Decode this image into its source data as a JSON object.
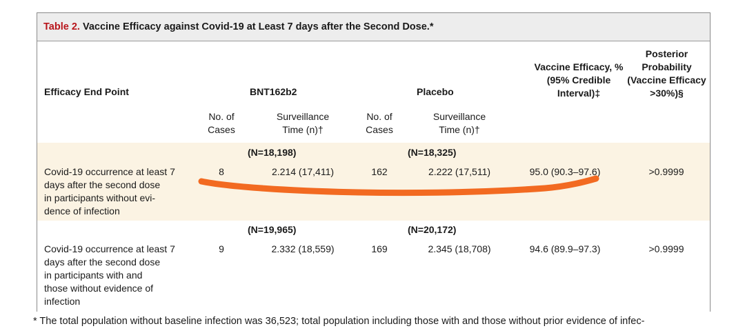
{
  "caption": {
    "label": "Table 2.",
    "title": "Vaccine Efficacy against Covid-19 at Least 7 days after the Second Dose.*"
  },
  "header": {
    "endpoint": "Efficacy End Point",
    "group1": "BNT162b2",
    "group2": "Placebo",
    "efficacy": [
      "Vaccine Efficacy, %",
      "(95% Credible",
      "Interval)‡"
    ],
    "posterior": [
      "Posterior",
      "Probability",
      "(Vaccine Efficacy",
      ">30%)§"
    ],
    "cases": [
      "No. of",
      "Cases"
    ],
    "surveillance": [
      "Surveillance",
      "Time (n)†"
    ]
  },
  "rows": [
    {
      "n1": "(N=18,198)",
      "n2": "(N=18,325)",
      "endpoint": [
        "Covid-19 occurrence at least 7",
        "days after the second dose",
        "in participants without evi-",
        "dence of infection"
      ],
      "cases1": "8",
      "time1": "2.214 (17,411)",
      "cases2": "162",
      "time2": "2.222 (17,511)",
      "efficacy": "95.0 (90.3–97.6)",
      "posterior": ">0.9999"
    },
    {
      "n1": "(N=19,965)",
      "n2": "(N=20,172)",
      "endpoint": [
        "Covid-19 occurrence at least 7",
        "days after the second dose",
        "in participants with and",
        "those without evidence of",
        "infection"
      ],
      "cases1": "9",
      "time1": "2.332 (18,559)",
      "cases2": "169",
      "time2": "2.345 (18,708)",
      "efficacy": "94.6 (89.9–97.3)",
      "posterior": ">0.9999"
    }
  ],
  "footnote": "* The total population without baseline infection was 36,523; total population including those with and those without prior evidence of infec-",
  "colors": {
    "caption_label": "#b8151b",
    "caption_background": "#ededed",
    "row_highlight": "#fbf3e3",
    "annotation_stroke": "#f26a21"
  }
}
